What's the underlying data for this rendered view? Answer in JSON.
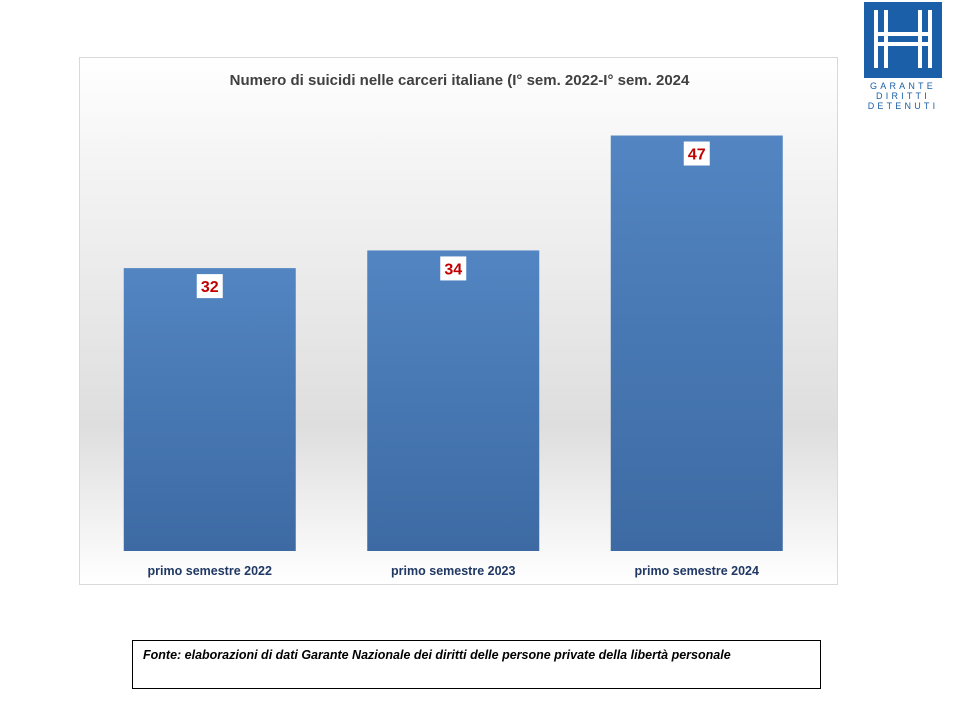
{
  "logo": {
    "text_lines": [
      "GARANTE",
      "DIRITTI",
      "DETENUTI"
    ],
    "color": "#1a5fa8"
  },
  "source": {
    "text": "Fonte: elaborazioni  di dati Garante Nazionale dei diritti delle persone private della libertà personale"
  },
  "chart_data": {
    "type": "bar",
    "title": "Numero di suicidi nelle carceri italiane (I° sem. 2022-I° sem. 2024",
    "categories": [
      "primo semestre 2022",
      "primo semestre 2023",
      "primo semestre 2024"
    ],
    "values": [
      32,
      34,
      47
    ],
    "xlabel": "",
    "ylabel": "",
    "ylim": [
      0,
      50
    ],
    "grid": false,
    "bar_color": "#4a7ebb",
    "label_color": "#c00000",
    "data_labels": [
      "32",
      "34",
      "47"
    ]
  }
}
